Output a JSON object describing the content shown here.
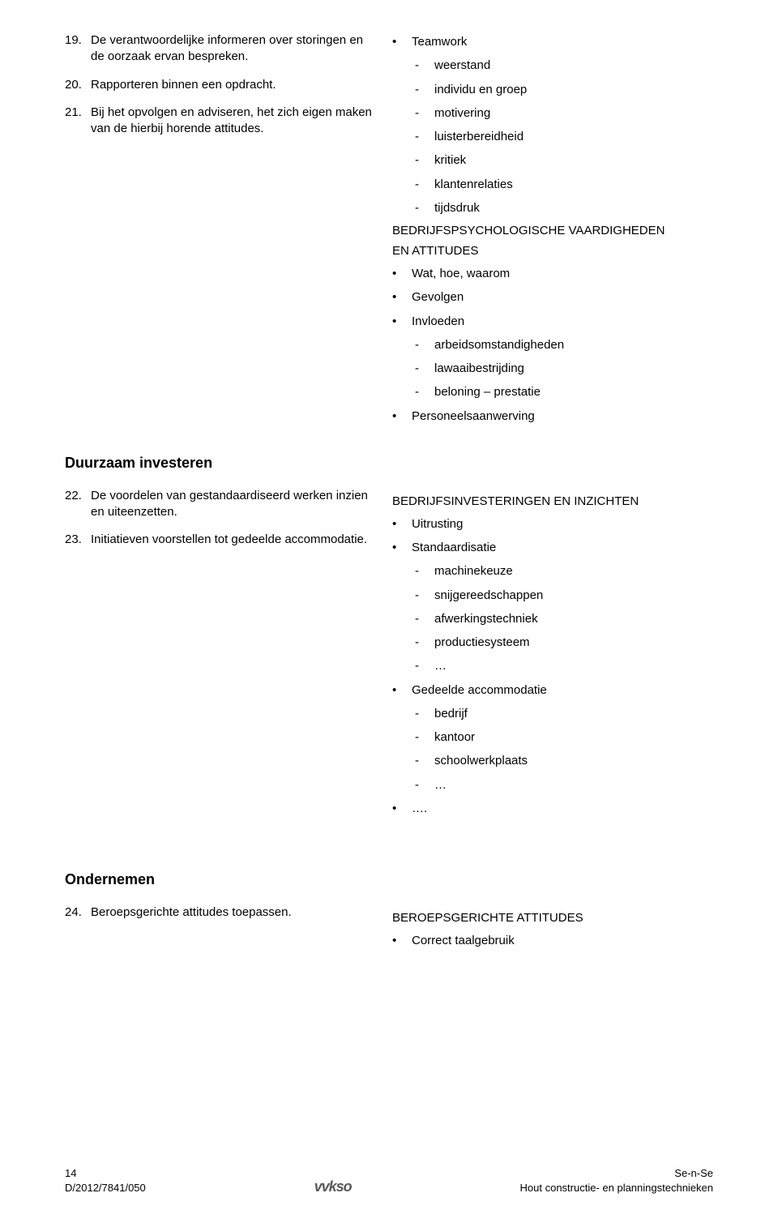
{
  "section1": {
    "left_items": [
      {
        "n": "19.",
        "t": "De verantwoordelijke informeren over storingen en de oorzaak ervan bespreken."
      },
      {
        "n": "20.",
        "t": "Rapporteren binnen een opdracht."
      },
      {
        "n": "21.",
        "t": "Bij het opvolgen en adviseren, het zich eigen maken van de hierbij horende attitudes."
      }
    ],
    "right": {
      "teamwork_label": "Teamwork",
      "teamwork_items": [
        "weerstand",
        "individu en groep",
        "motivering",
        "luisterbereidheid",
        "kritiek",
        "klantenrelaties",
        "tijdsdruk"
      ],
      "psych_head1": "BEDRIJFSPSYCHOLOGISCHE VAARDIGHEDEN",
      "psych_head2": "EN ATTITUDES",
      "psych_bullets": [
        "Wat, hoe, waarom",
        "Gevolgen",
        "Invloeden"
      ],
      "invloeden_items": [
        "arbeidsomstandigheden",
        "lawaaibestrijding",
        "beloning – prestatie"
      ],
      "personeel": "Personeelsaanwerving"
    }
  },
  "heading_duurzaam": "Duurzaam investeren",
  "section2": {
    "left_items": [
      {
        "n": "22.",
        "t": "De voordelen van gestandaardiseerd werken inzien en uiteenzetten."
      },
      {
        "n": "23.",
        "t": "Initiatieven voorstellen tot gedeelde accommodatie."
      }
    ],
    "right": {
      "head": "BEDRIJFSINVESTERINGEN EN INZICHTEN",
      "uitrusting": "Uitrusting",
      "standaardisatie": "Standaardisatie",
      "stand_items": [
        "machinekeuze",
        "snijgereedschappen",
        "afwerkingstechniek",
        "productiesysteem",
        "…"
      ],
      "gedeelde": "Gedeelde accommodatie",
      "ged_items": [
        "bedrijf",
        "kantoor",
        "schoolwerkplaats",
        "…"
      ],
      "trailing": "…."
    }
  },
  "heading_ondernemen": "Ondernemen",
  "section3": {
    "left_items": [
      {
        "n": "24.",
        "t": "Beroepsgerichte attitudes toepassen."
      }
    ],
    "right": {
      "head": "BEROEPSGERICHTE ATTITUDES",
      "bullets": [
        "Correct taalgebruik"
      ]
    }
  },
  "footer": {
    "left1": "14",
    "left2": "D/2012/7841/050",
    "logo": "vvkso",
    "right1": "Se-n-Se",
    "right2": "Hout constructie- en planningstechnieken"
  }
}
